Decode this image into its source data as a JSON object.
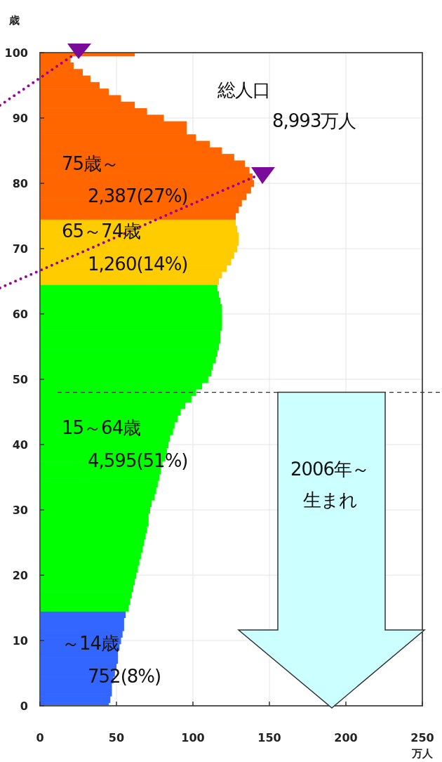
{
  "chart_data": {
    "type": "bar",
    "orientation": "horizontal",
    "xlabel": "万人",
    "ylabel": "歳",
    "xlim": [
      0,
      250
    ],
    "xticks": [
      0,
      50,
      100,
      150,
      200,
      250
    ],
    "ylim": [
      0,
      100
    ],
    "yticks": [
      0,
      10,
      20,
      30,
      40,
      50,
      60,
      70,
      80,
      90,
      100
    ],
    "grid": true,
    "series": [
      {
        "name": "～14歳",
        "color": "#3366ff",
        "x": [
          0,
          1,
          2,
          3,
          4,
          5,
          6,
          7,
          8,
          9,
          10,
          11,
          12,
          13,
          14
        ],
        "values": [
          45,
          46,
          47,
          47,
          48,
          49,
          50,
          51,
          51,
          52,
          53,
          54,
          55,
          55,
          56
        ]
      },
      {
        "name": "15～64歳",
        "color": "#00ff00",
        "x": [
          15,
          16,
          17,
          18,
          19,
          20,
          21,
          22,
          23,
          24,
          25,
          26,
          27,
          28,
          29,
          30,
          31,
          32,
          33,
          34,
          35,
          36,
          37,
          38,
          39,
          40,
          41,
          42,
          43,
          44,
          45,
          46,
          47,
          48,
          49,
          50,
          51,
          52,
          53,
          54,
          55,
          56,
          57,
          58,
          59,
          60,
          61,
          62,
          63,
          64
        ],
        "values": [
          58,
          59,
          60,
          61,
          62,
          63,
          64,
          65,
          66,
          67,
          68,
          69,
          70,
          71,
          71,
          72,
          73,
          75,
          76,
          77,
          78,
          79,
          80,
          82,
          83,
          84,
          85,
          87,
          88,
          90,
          92,
          95,
          99,
          102,
          106,
          110,
          112,
          113,
          115,
          116,
          117,
          118,
          118,
          119,
          119,
          119,
          119,
          118,
          117,
          116
        ]
      },
      {
        "name": "65～74歳",
        "color": "#ffcc00",
        "x": [
          65,
          66,
          67,
          68,
          69,
          70,
          71,
          72,
          73,
          74
        ],
        "values": [
          117,
          119,
          122,
          125,
          127,
          129,
          130,
          130,
          129,
          128
        ]
      },
      {
        "name": "75歳～",
        "color": "#ff6600",
        "x": [
          75,
          76,
          77,
          78,
          79,
          80,
          81,
          82,
          83,
          84,
          85,
          86,
          87,
          88,
          89,
          90,
          91,
          92,
          93,
          94,
          95,
          96,
          97,
          98,
          99,
          100
        ],
        "values": [
          128,
          130,
          132,
          135,
          138,
          140,
          139,
          137,
          134,
          127,
          119,
          111,
          102,
          96,
          96,
          81,
          70,
          62,
          53,
          45,
          39,
          33,
          28,
          22,
          20,
          62
        ]
      }
    ],
    "ref_lines": [
      {
        "axis": "y",
        "value": 48,
        "line_style": "dashed"
      }
    ],
    "annotations": [
      "752(8%)",
      "4,595(51%)",
      "1,260(14%)",
      "2,387(27%)",
      "総人口",
      "8,993万人",
      "2006年～",
      "生まれ"
    ]
  }
}
